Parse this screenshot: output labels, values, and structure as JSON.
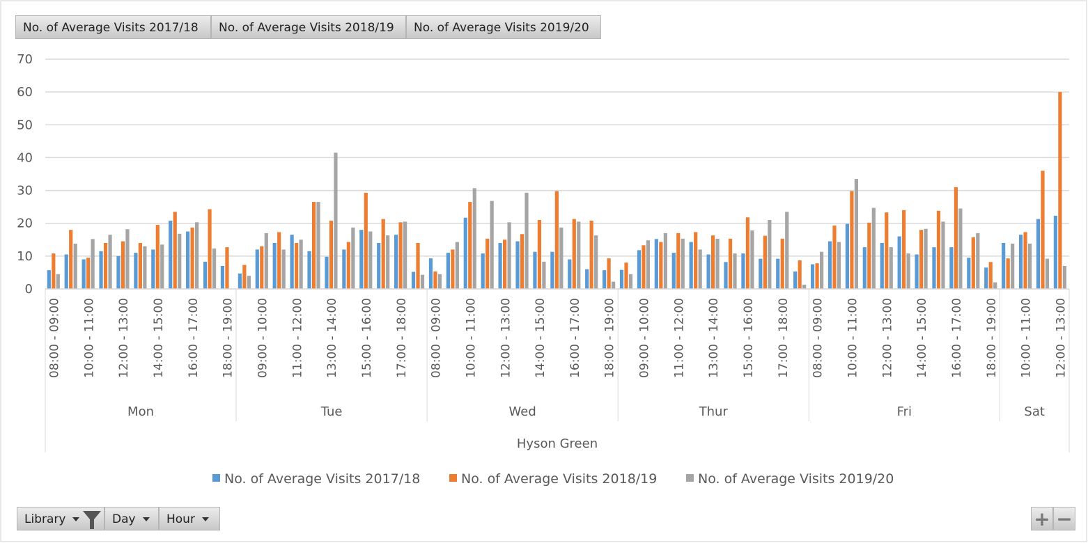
{
  "chart_data": {
    "type": "bar",
    "library": "Hyson Green",
    "field_buttons": [
      "Library",
      "Day",
      "Hour"
    ],
    "categories": [
      {
        "name": "Mon",
        "hours": [
          "08:00 - 09:00",
          null,
          "10:00 - 11:00",
          null,
          "12:00 - 13:00",
          null,
          "14:00 - 15:00",
          null,
          "16:00 - 17:00",
          null,
          "18:00 - 19:00"
        ]
      },
      {
        "name": "Tue",
        "hours": [
          null,
          "09:00 - 10:00",
          null,
          "11:00 - 12:00",
          null,
          "13:00 - 14:00",
          null,
          "15:00 - 16:00",
          null,
          "17:00 - 18:00",
          null
        ]
      },
      {
        "name": "Wed",
        "hours": [
          "08:00 - 09:00",
          null,
          "10:00 - 11:00",
          null,
          "12:00 - 13:00",
          null,
          "14:00 - 15:00",
          null,
          "16:00 - 17:00",
          null,
          "18:00 - 19:00"
        ]
      },
      {
        "name": "Thur",
        "hours": [
          null,
          "09:00 - 10:00",
          null,
          "11:00 - 12:00",
          null,
          "13:00 - 14:00",
          null,
          "15:00 - 16:00",
          null,
          "17:00 - 18:00",
          null
        ]
      },
      {
        "name": "Fri",
        "hours": [
          "08:00 - 09:00",
          null,
          "10:00 - 11:00",
          null,
          "12:00 - 13:00",
          null,
          "14:00 - 15:00",
          null,
          "16:00 - 17:00",
          null,
          "18:00 - 19:00"
        ]
      },
      {
        "name": "Sat",
        "hours": [
          null,
          "10:00 - 11:00",
          null,
          "12:00 - 13:00"
        ]
      }
    ],
    "series": [
      {
        "name": "No. of Average Visits 2017/18",
        "color": "#5b9bd5",
        "values": [
          [
            5.7,
            10.5,
            9,
            11.5,
            10,
            11,
            12,
            20.8,
            17.5,
            8.3,
            7
          ],
          [
            4.7,
            12,
            14,
            16.5,
            11.5,
            9.8,
            12,
            18,
            14,
            16.5,
            5.2
          ],
          [
            9.3,
            11,
            21.7,
            10.8,
            14,
            14.5,
            11.3,
            11.3,
            9,
            6,
            5.7
          ],
          [
            5.8,
            11.8,
            15.2,
            11,
            14.3,
            10.5,
            8.2,
            10.8,
            9.2,
            9.2,
            5.3
          ],
          [
            7.5,
            14.5,
            19.8,
            12.7,
            14,
            16,
            10.5,
            12.7,
            12.7,
            9.5,
            6.5
          ],
          [
            14,
            16.5,
            21.3,
            22.3
          ]
        ]
      },
      {
        "name": "No. of Average Visits 2018/19",
        "color": "#ed7d31",
        "values": [
          [
            10.8,
            18,
            9.5,
            14,
            14.5,
            14,
            19.5,
            23.5,
            18.7,
            24.3,
            12.7
          ],
          [
            7.3,
            13,
            17.3,
            14,
            26.5,
            20.8,
            14.3,
            29.3,
            21.3,
            20.3,
            14
          ],
          [
            5.3,
            12,
            26.5,
            15.3,
            15,
            16.7,
            21,
            29.8,
            21.3,
            20.8,
            9.3
          ],
          [
            8,
            13.3,
            14.3,
            17,
            17.3,
            16.3,
            15.3,
            21.8,
            16.2,
            15.3,
            8.7
          ],
          [
            7.8,
            19.3,
            29.8,
            20.2,
            23.3,
            24,
            18,
            23.8,
            31,
            15.7,
            8.2
          ],
          [
            9.3,
            17.3,
            36,
            60
          ]
        ]
      },
      {
        "name": "No. of Average Visits 2019/20",
        "color": "#a5a5a5",
        "values": [
          [
            4.5,
            13.8,
            15.2,
            16.5,
            18.2,
            13,
            13.5,
            16.8,
            20.3,
            12.3,
            null
          ],
          [
            4,
            17,
            12,
            15,
            26.5,
            41.5,
            18.7,
            17.5,
            16.3,
            20.5,
            4.3
          ],
          [
            4.5,
            14.3,
            30.7,
            26.8,
            20.3,
            29.3,
            8.3,
            18.7,
            20.5,
            16.3,
            2.2
          ],
          [
            4.5,
            14.8,
            17,
            15.3,
            12,
            15.3,
            10.8,
            17.8,
            21,
            23.5,
            1.3
          ],
          [
            11.3,
            14.3,
            33.5,
            24.7,
            12.7,
            10.8,
            18.3,
            20.5,
            24.5,
            17,
            2
          ],
          [
            13.8,
            13.8,
            9.2,
            7
          ]
        ]
      }
    ],
    "ylim": [
      0,
      70
    ],
    "yticks": [
      0,
      10,
      20,
      30,
      40,
      50,
      60,
      70
    ],
    "grid": true
  }
}
